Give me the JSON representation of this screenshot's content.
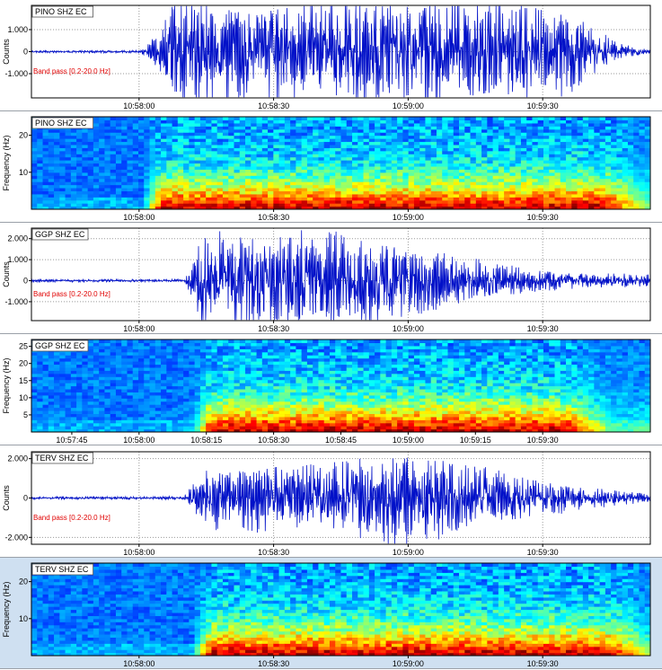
{
  "chart_data": [
    {
      "type": "line",
      "kind": "waveform",
      "title": "PINO SHZ EC",
      "ylabel": "Counts",
      "filter": "Band pass [0.2-20.0 Hz]",
      "y_ticks": [
        1000,
        0,
        -1000
      ],
      "y_tick_labels": [
        "1.000",
        "0",
        "-1.000"
      ],
      "ylim": [
        -2100,
        2100
      ],
      "x_ticks": [
        "10:58:00",
        "10:58:30",
        "10:59:00",
        "10:59:30"
      ],
      "x_tick_seconds": [
        0,
        30,
        60,
        90
      ],
      "xlim_seconds": [
        -24,
        114
      ],
      "series": [
        {
          "x_seconds": [
            -24,
            0,
            2,
            5,
            8,
            12,
            20,
            30,
            45,
            60,
            75,
            90,
            100,
            105,
            110,
            114
          ],
          "envelope": [
            40,
            50,
            300,
            900,
            1900,
            2000,
            1950,
            1900,
            2000,
            1950,
            1900,
            1850,
            1200,
            500,
            200,
            80
          ]
        }
      ]
    },
    {
      "type": "heatmap",
      "kind": "spectrogram",
      "title": "PINO SHZ EC",
      "ylabel": "Frequency (Hz)",
      "y_ticks": [
        20,
        10
      ],
      "ylim": [
        0,
        25
      ],
      "x_ticks": [
        "10:58:00",
        "10:58:30",
        "10:59:00",
        "10:59:30"
      ],
      "x_tick_seconds": [
        0,
        30,
        60,
        90
      ],
      "xlim_seconds": [
        -24,
        114
      ],
      "colormap": "jet",
      "onset_seconds": 1,
      "end_seconds": 104
    },
    {
      "type": "line",
      "kind": "waveform",
      "title": "GGP SHZ EC",
      "ylabel": "Counts",
      "filter": "Band pass [0.2-20.0 Hz]",
      "y_ticks": [
        2000,
        1000,
        0,
        -1000
      ],
      "y_tick_labels": [
        "2.000",
        "1.000",
        "0",
        "-1.000"
      ],
      "ylim": [
        -1900,
        2500
      ],
      "x_ticks": [
        "10:58:00",
        "10:58:30",
        "10:59:00",
        "10:59:30"
      ],
      "x_tick_seconds": [
        0,
        30,
        60,
        90
      ],
      "xlim_seconds": [
        -24,
        114
      ],
      "series": [
        {
          "x_seconds": [
            -24,
            10,
            12,
            15,
            20,
            30,
            40,
            50,
            60,
            70,
            80,
            90,
            100,
            114
          ],
          "envelope": [
            50,
            60,
            700,
            2300,
            2100,
            2200,
            1800,
            1900,
            1400,
            1000,
            650,
            400,
            300,
            250
          ]
        }
      ]
    },
    {
      "type": "heatmap",
      "kind": "spectrogram",
      "title": "GGP SHZ EC",
      "ylabel": "Frequency (Hz)",
      "y_ticks": [
        25,
        20,
        15,
        10,
        5
      ],
      "ylim": [
        0,
        27
      ],
      "x_ticks": [
        "10:57:45",
        "10:58:00",
        "10:58:15",
        "10:58:30",
        "10:58:45",
        "10:59:00",
        "10:59:15",
        "10:59:30"
      ],
      "x_tick_seconds": [
        -15,
        0,
        15,
        30,
        45,
        60,
        75,
        90
      ],
      "xlim_seconds": [
        -24,
        114
      ],
      "colormap": "jet",
      "onset_seconds": 12,
      "end_seconds": 95
    },
    {
      "type": "line",
      "kind": "waveform",
      "title": "TERV SHZ EC",
      "ylabel": "Counts",
      "filter": "Band pass [0.2-20.0 Hz]",
      "y_ticks": [
        2000,
        0,
        -2000
      ],
      "y_tick_labels": [
        "2.000",
        "0",
        "-2.000"
      ],
      "ylim": [
        -2350,
        2350
      ],
      "x_ticks": [
        "10:58:00",
        "10:58:30",
        "10:59:00",
        "10:59:30"
      ],
      "x_tick_seconds": [
        0,
        30,
        60,
        90
      ],
      "xlim_seconds": [
        -24,
        114
      ],
      "series": [
        {
          "x_seconds": [
            -24,
            10,
            12,
            15,
            25,
            35,
            45,
            55,
            60,
            65,
            75,
            85,
            95,
            105,
            114
          ],
          "envelope": [
            60,
            70,
            600,
            1300,
            1400,
            1300,
            1500,
            1900,
            2000,
            1800,
            1300,
            900,
            600,
            350,
            200
          ]
        }
      ]
    },
    {
      "type": "heatmap",
      "kind": "spectrogram",
      "title": "TERV SHZ EC",
      "ylabel": "Frequency (Hz)",
      "y_ticks": [
        20,
        10
      ],
      "ylim": [
        0,
        25
      ],
      "x_ticks": [
        "10:58:00",
        "10:58:30",
        "10:59:00",
        "10:59:30"
      ],
      "x_tick_seconds": [
        0,
        30,
        60,
        90
      ],
      "xlim_seconds": [
        -24,
        114
      ],
      "colormap": "jet",
      "onset_seconds": 12,
      "end_seconds": 105
    }
  ]
}
